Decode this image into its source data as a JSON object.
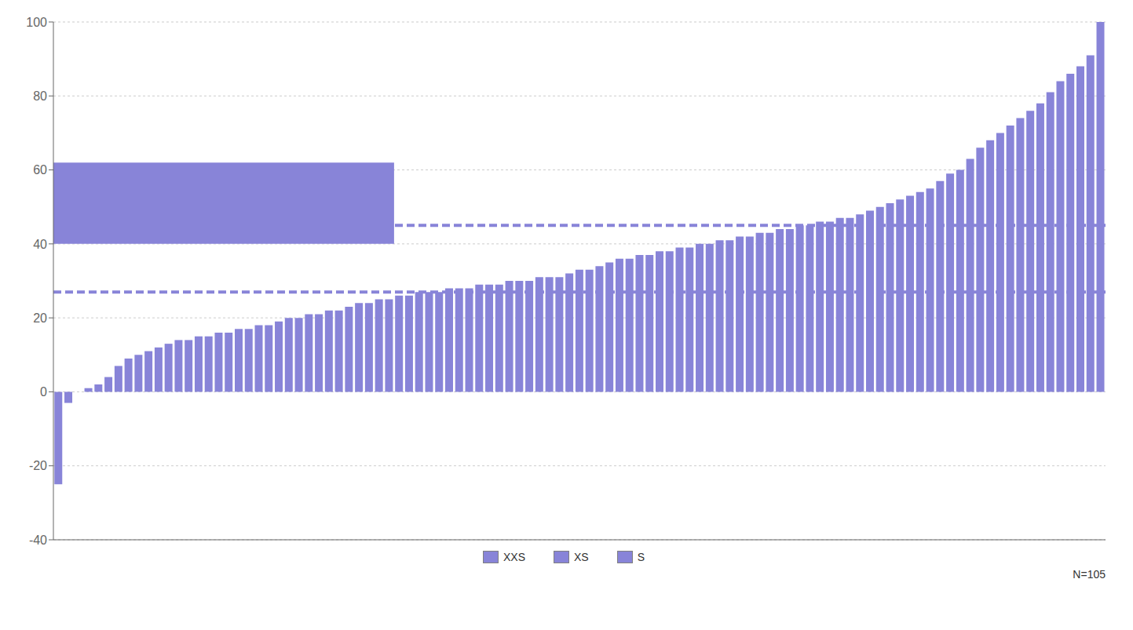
{
  "chart_data": {
    "type": "bar",
    "categories": [
      null,
      null,
      null,
      null,
      null,
      null,
      null,
      null,
      null,
      null,
      null,
      null,
      null,
      null,
      null,
      null,
      null,
      null,
      null,
      null,
      null,
      null,
      null,
      null,
      null,
      null,
      null,
      null,
      null,
      null,
      null,
      null,
      null,
      null,
      null,
      null,
      null,
      null,
      null,
      null,
      null,
      null,
      null,
      null,
      null,
      null,
      null,
      null,
      null,
      null,
      null,
      null,
      null,
      null,
      null,
      null,
      null,
      null,
      null,
      null,
      null,
      null,
      null,
      null,
      null,
      null,
      null,
      null,
      null,
      null,
      null,
      null,
      null,
      null,
      null,
      null,
      null,
      null,
      null,
      null,
      null,
      null,
      null,
      null,
      null,
      null,
      null,
      null,
      null,
      null,
      null,
      null,
      null,
      null,
      null,
      null,
      null,
      null,
      null,
      null,
      null,
      null,
      null,
      null,
      null
    ],
    "values": [
      -25,
      -3,
      0,
      1,
      2,
      4,
      7,
      9,
      10,
      11,
      12,
      13,
      14,
      14,
      15,
      15,
      16,
      16,
      17,
      17,
      18,
      18,
      19,
      20,
      20,
      21,
      21,
      22,
      22,
      23,
      24,
      24,
      25,
      25,
      26,
      26,
      27,
      27,
      27,
      28,
      28,
      28,
      29,
      29,
      29,
      30,
      30,
      30,
      31,
      31,
      31,
      32,
      33,
      33,
      34,
      35,
      36,
      36,
      37,
      37,
      38,
      38,
      39,
      39,
      40,
      40,
      41,
      41,
      42,
      42,
      43,
      43,
      44,
      44,
      45,
      45,
      46,
      46,
      47,
      47,
      48,
      49,
      50,
      51,
      52,
      53,
      54,
      55,
      57,
      59,
      60,
      63,
      66,
      68,
      70,
      72,
      74,
      76,
      78,
      81,
      84,
      86,
      88,
      91,
      100
    ],
    "color": "#8884d8",
    "ylim": [
      -40,
      100
    ],
    "yticks": [
      -40,
      -20,
      0,
      20,
      40,
      60,
      80,
      100
    ],
    "grid": true,
    "tick_labels": "y",
    "legend": "bottom",
    "legend_labels": [
      "XXS",
      "XS",
      "S"
    ],
    "annotation": "N=105",
    "hlines": [
      27,
      45
    ],
    "box": {
      "x_start": 0,
      "x_end": 33,
      "bottom": 40,
      "top": 62
    }
  }
}
